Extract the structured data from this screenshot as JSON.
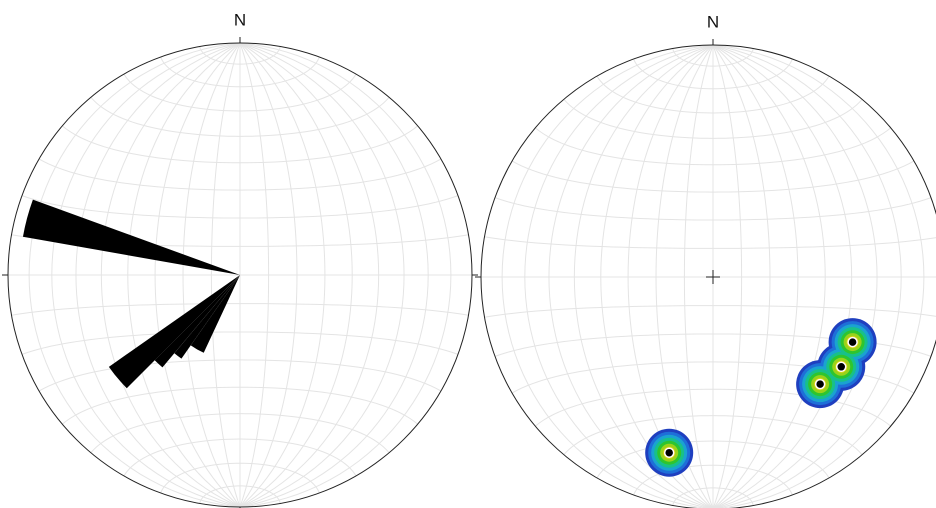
{
  "chart_data": [
    {
      "type": "rose",
      "north_label": "N",
      "rlim": [
        0,
        1
      ],
      "color": "#000000",
      "bins_from": [
        280,
        225,
        220,
        215,
        205
      ],
      "bins_to": [
        290,
        235,
        225,
        220,
        215
      ],
      "values": [
        0.95,
        0.69,
        0.52,
        0.44,
        0.37
      ]
    },
    {
      "type": "stereonet",
      "north_label": "N",
      "color": "#000000",
      "trend": [
        115,
        125,
        135,
        194
      ],
      "plunge": [
        34,
        33,
        35,
        23
      ]
    }
  ]
}
